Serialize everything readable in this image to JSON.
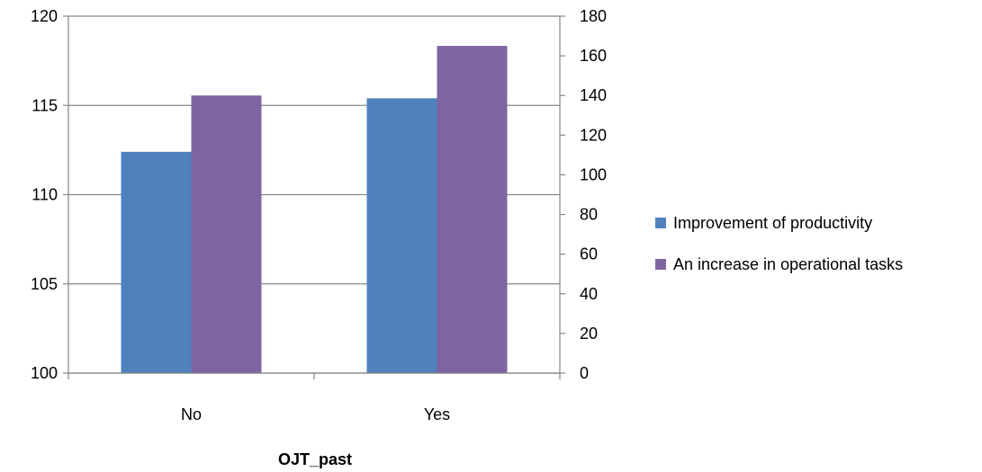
{
  "chart_data": {
    "type": "bar",
    "categories": [
      "No",
      "Yes"
    ],
    "xlabel": "OJT_past",
    "series": [
      {
        "name": "Improvement of productivity",
        "axis": "left",
        "color": "#4F81BD",
        "values": [
          112.4,
          115.4
        ]
      },
      {
        "name": "An increase in operational tasks",
        "axis": "right",
        "color": "#8064A2",
        "values": [
          140,
          165
        ]
      }
    ],
    "y_left": {
      "min": 100,
      "max": 120,
      "step": 5,
      "ticks": [
        "100",
        "105",
        "110",
        "115",
        "120"
      ]
    },
    "y_right": {
      "min": 0,
      "max": 180,
      "step": 20,
      "ticks": [
        "0",
        "20",
        "40",
        "60",
        "80",
        "100",
        "120",
        "140",
        "160",
        "180"
      ]
    },
    "grid": true,
    "legend_position": "right",
    "colors": {
      "gridline": "#868686",
      "axis": "#868686"
    }
  }
}
